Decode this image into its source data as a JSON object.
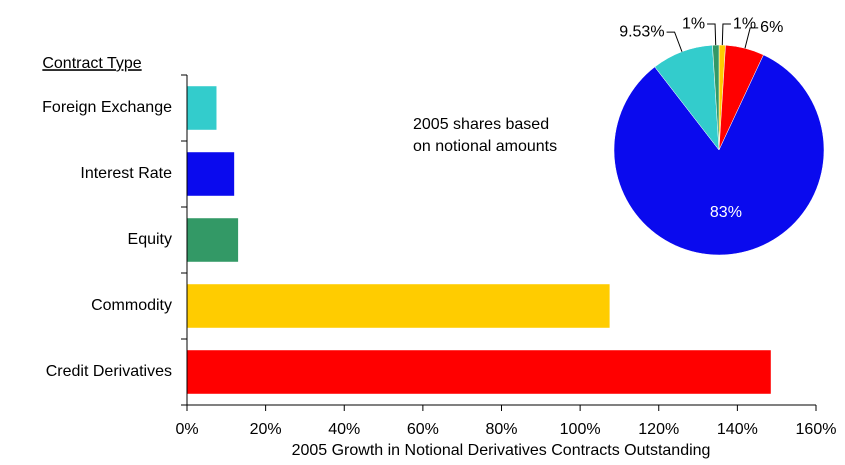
{
  "chart_data": [
    {
      "type": "barh",
      "categories": [
        "Foreign Exchange",
        "Interest Rate",
        "Equity",
        "Commodity",
        "Credit Derivatives"
      ],
      "values": [
        7.5,
        12,
        13,
        107.5,
        148.5
      ],
      "colors": [
        "#33cccc",
        "#0a0aee",
        "#339966",
        "#ffcc00",
        "#ff0000"
      ],
      "category_axis_label": "Contract Type",
      "x_label": "2005 Growth in Notional Derivatives Contracts Outstanding",
      "xlim": [
        0,
        160
      ],
      "xticks": [
        {
          "value": 0,
          "label": "0%"
        },
        {
          "value": 20,
          "label": "20%"
        },
        {
          "value": 40,
          "label": "40%"
        },
        {
          "value": 60,
          "label": "60%"
        },
        {
          "value": 80,
          "label": "80%"
        },
        {
          "value": 100,
          "label": "100%"
        },
        {
          "value": 120,
          "label": "120%"
        },
        {
          "value": 140,
          "label": "140%"
        },
        {
          "value": 160,
          "label": "160%"
        }
      ],
      "grid": false
    },
    {
      "type": "pie",
      "values": [
        1,
        6,
        83,
        9.53,
        1
      ],
      "value_labels": [
        "1%",
        "6%",
        "83%",
        "9.53%",
        "1%"
      ],
      "colors": [
        "#ffcc00",
        "#ff0000",
        "#0a0aee",
        "#33cccc",
        "#339966"
      ],
      "annotation": [
        "2005 shares based",
        "on notional amounts"
      ]
    }
  ]
}
